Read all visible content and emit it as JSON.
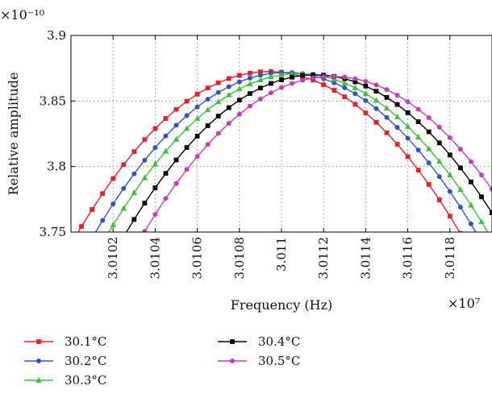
{
  "chart_data": {
    "type": "line",
    "xlabel": "Frequency (Hz)",
    "ylabel": "Relative amplitude",
    "x_multiplier_label": "×10⁷",
    "y_multiplier_label": "×10⁻¹⁰",
    "xlim": [
      3.01,
      3.012
    ],
    "ylim": [
      3.75,
      3.9
    ],
    "x_ticks": [
      3.0102,
      3.0104,
      3.0106,
      3.0108,
      3.011,
      3.0112,
      3.0114,
      3.0116,
      3.0118
    ],
    "x_tick_labels": [
      "3.0102",
      "3.0104",
      "3.0106",
      "3.0108",
      "3.011",
      "3.0112",
      "3.0114",
      "3.0116",
      "3.0118"
    ],
    "y_ticks": [
      3.75,
      3.8,
      3.85,
      3.9
    ],
    "y_tick_labels": [
      "3.75",
      "3.8",
      "3.85",
      "3.9"
    ],
    "grid": "dotted",
    "legend_position": "bottom",
    "series": [
      {
        "name": "30.1°C",
        "color": "#e8202a",
        "marker": "square",
        "peak_x": 3.01094,
        "peak_y": 3.8725,
        "curvature": 6.7e-06
      },
      {
        "name": "30.2°C",
        "color": "#2e55c8",
        "marker": "circle",
        "peak_x": 3.01102,
        "peak_y": 3.8718,
        "curvature": 6.7e-06
      },
      {
        "name": "30.3°C",
        "color": "#3cc13c",
        "marker": "triangle",
        "peak_x": 3.01108,
        "peak_y": 3.8709,
        "curvature": 6.7e-06
      },
      {
        "name": "30.4°C",
        "color": "#000000",
        "marker": "square",
        "peak_x": 3.01116,
        "peak_y": 3.87,
        "curvature": 6.7e-06
      },
      {
        "name": "30.5°C",
        "color": "#c43bc0",
        "marker": "circle",
        "peak_x": 3.01124,
        "peak_y": 3.8688,
        "curvature": 6.7e-06
      }
    ]
  }
}
